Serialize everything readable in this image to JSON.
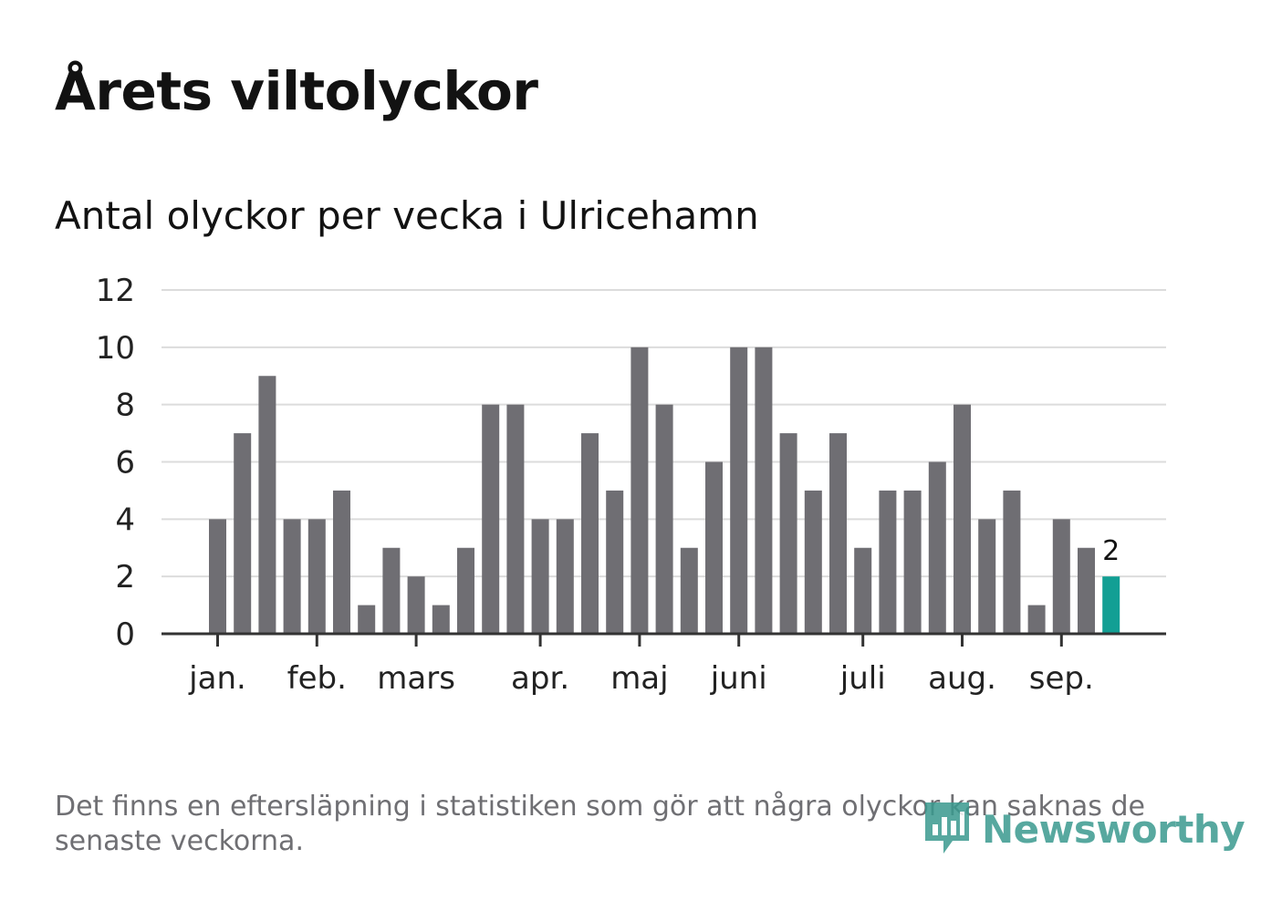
{
  "header": {
    "title": "Årets viltolyckor",
    "subtitle": "Antal olyckor per vecka i Ulricehamn"
  },
  "chart_data": {
    "type": "bar",
    "ylim": [
      0,
      12
    ],
    "y_ticks": [
      0,
      2,
      4,
      6,
      8,
      10,
      12
    ],
    "grid": true,
    "values": [
      4,
      7,
      9,
      4,
      4,
      5,
      1,
      3,
      2,
      1,
      3,
      8,
      8,
      4,
      4,
      7,
      5,
      10,
      8,
      3,
      6,
      10,
      10,
      7,
      5,
      7,
      3,
      5,
      5,
      6,
      8,
      4,
      5,
      1,
      4,
      3,
      2
    ],
    "month_labels": [
      {
        "label": "jan.",
        "week": 1
      },
      {
        "label": "feb.",
        "week": 5
      },
      {
        "label": "mars",
        "week": 9
      },
      {
        "label": "apr.",
        "week": 14
      },
      {
        "label": "maj",
        "week": 18
      },
      {
        "label": "juni",
        "week": 22
      },
      {
        "label": "juli",
        "week": 27
      },
      {
        "label": "aug.",
        "week": 31
      },
      {
        "label": "sep.",
        "week": 35
      }
    ],
    "bar_color": "#6f6e73",
    "highlight_color": "#129f94",
    "highlight_last": true,
    "last_value_label": "2"
  },
  "footer": {
    "note": "Det finns en eftersläpning i statistiken som gör att några olyckor kan saknas de senaste veckorna.",
    "logo_text": "Newsworthy",
    "logo_icon": "newsworthy-logo-icon"
  }
}
